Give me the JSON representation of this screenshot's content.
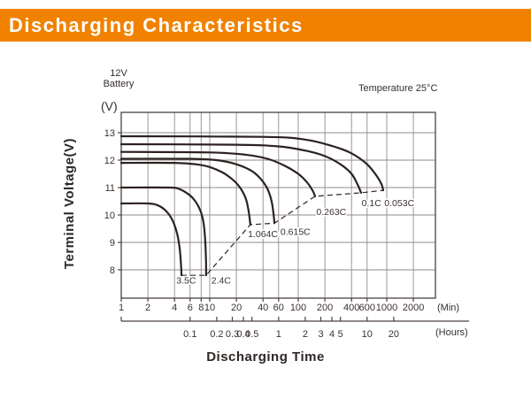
{
  "header": {
    "title": "Discharging Characteristics",
    "bg_color": "#F08200",
    "text_color": "#FFFFFF"
  },
  "chart": {
    "battery_line1": "12V",
    "battery_line2": "Battery",
    "temperature_label": "Temperature 25°C",
    "y_unit_label": "(V)",
    "min_unit_label": "(Min)",
    "hours_unit_label": "(Hours)"
  },
  "colors": {
    "grid": "#8f8b89",
    "frame": "#4a423e",
    "curve": "#2b2220",
    "tick_text": "#3a3230"
  },
  "chart_data": {
    "type": "line",
    "title": "Discharging Characteristics",
    "xlabel": "Discharging Time",
    "ylabel": "Terminal Voltage(V)",
    "x_scale": "log",
    "x_unit_primary": "Min",
    "x_unit_secondary": "Hours",
    "xlim_min": [
      1,
      3500
    ],
    "ylim": [
      7,
      13.7
    ],
    "y_ticks": [
      8,
      9,
      10,
      11,
      12,
      13
    ],
    "x_ticks_min": [
      1,
      2,
      4,
      6,
      8,
      10,
      20,
      40,
      60,
      100,
      200,
      400,
      600,
      1000,
      2000
    ],
    "x_ticks_hours": [
      0.1,
      0.2,
      0.3,
      0.4,
      0.5,
      1,
      2,
      3,
      4,
      5,
      10,
      20
    ],
    "grid": true,
    "legend_position": "inline-labels",
    "annotation": "Temperature 25°C",
    "series": [
      {
        "name": "3.5C",
        "label_pos": [
          4.2,
          7.5
        ],
        "points": [
          [
            1,
            10.42
          ],
          [
            2,
            10.42
          ],
          [
            2.6,
            10.35
          ],
          [
            3.2,
            10.15
          ],
          [
            3.8,
            9.8
          ],
          [
            4.3,
            9.3
          ],
          [
            4.6,
            8.7
          ],
          [
            4.75,
            8.1
          ],
          [
            4.8,
            7.8
          ]
        ]
      },
      {
        "name": "2.4C",
        "label_pos": [
          10.4,
          7.5
        ],
        "points": [
          [
            1,
            11.0
          ],
          [
            3.5,
            11.0
          ],
          [
            4.5,
            10.95
          ],
          [
            5.5,
            10.8
          ],
          [
            6.5,
            10.6
          ],
          [
            7.5,
            10.3
          ],
          [
            8.3,
            9.9
          ],
          [
            8.8,
            9.3
          ],
          [
            9.05,
            8.4
          ],
          [
            9.1,
            7.8
          ]
        ]
      },
      {
        "name": "1.064C",
        "label_pos": [
          27.0,
          9.2
        ],
        "points": [
          [
            1,
            11.9
          ],
          [
            4,
            11.9
          ],
          [
            7,
            11.85
          ],
          [
            10,
            11.75
          ],
          [
            14,
            11.55
          ],
          [
            18,
            11.3
          ],
          [
            22,
            11.0
          ],
          [
            25.5,
            10.6
          ],
          [
            27.5,
            10.15
          ],
          [
            28.8,
            9.65
          ]
        ]
      },
      {
        "name": "0.615C",
        "label_pos": [
          63,
          9.28
        ],
        "points": [
          [
            1,
            12.05
          ],
          [
            6,
            12.05
          ],
          [
            12,
            12.0
          ],
          [
            20,
            11.85
          ],
          [
            30,
            11.6
          ],
          [
            38,
            11.3
          ],
          [
            45,
            10.95
          ],
          [
            50,
            10.5
          ],
          [
            53,
            9.95
          ],
          [
            53.7,
            9.7
          ]
        ]
      },
      {
        "name": "0.263C",
        "label_pos": [
          160,
          10.0
        ],
        "points": [
          [
            1,
            12.3
          ],
          [
            10,
            12.28
          ],
          [
            25,
            12.2
          ],
          [
            45,
            12.05
          ],
          [
            70,
            11.8
          ],
          [
            100,
            11.5
          ],
          [
            125,
            11.2
          ],
          [
            145,
            10.9
          ],
          [
            155,
            10.68
          ]
        ]
      },
      {
        "name": "0.1C",
        "label_pos": [
          520,
          10.32
        ],
        "points": [
          [
            1,
            12.58
          ],
          [
            20,
            12.56
          ],
          [
            60,
            12.5
          ],
          [
            120,
            12.35
          ],
          [
            200,
            12.15
          ],
          [
            300,
            11.85
          ],
          [
            400,
            11.5
          ],
          [
            470,
            11.1
          ],
          [
            513,
            10.81
          ]
        ]
      },
      {
        "name": "0.053C",
        "label_pos": [
          940,
          10.32
        ],
        "points": [
          [
            1,
            12.87
          ],
          [
            40,
            12.85
          ],
          [
            120,
            12.75
          ],
          [
            250,
            12.5
          ],
          [
            400,
            12.25
          ],
          [
            600,
            11.85
          ],
          [
            780,
            11.4
          ],
          [
            880,
            11.1
          ],
          [
            912,
            10.9
          ]
        ]
      }
    ],
    "cutoff_line": {
      "style": "dashed",
      "points": [
        [
          4.8,
          7.8
        ],
        [
          9.1,
          7.8
        ],
        [
          28.8,
          9.65
        ],
        [
          53.7,
          9.7
        ],
        [
          155,
          10.68
        ],
        [
          513,
          10.81
        ],
        [
          912,
          10.9
        ]
      ]
    }
  }
}
